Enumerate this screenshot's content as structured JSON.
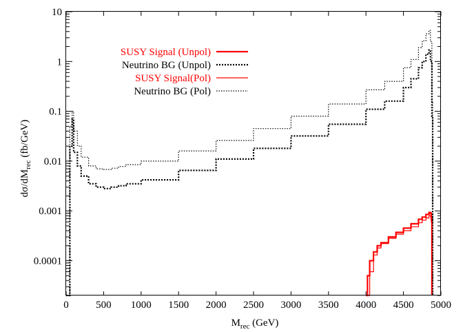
{
  "chart_data": {
    "type": "line",
    "xlabel": "M",
    "xlabel_sub": "rec",
    "xlabel_unit": " (GeV)",
    "ylabel": "dσ/dM",
    "ylabel_sub": "rec",
    "ylabel_unit": " (fb/GeV)",
    "xlim": [
      0,
      5000
    ],
    "ylim": [
      2e-05,
      10
    ],
    "yscale": "log",
    "grid": false,
    "legend_position": "top-left",
    "x_ticks": [
      0,
      500,
      1000,
      1500,
      2000,
      2500,
      3000,
      3500,
      4000,
      4500,
      5000
    ],
    "x_tick_labels": [
      "0",
      "500",
      "1000",
      "1500",
      "2000",
      "2500",
      "3000",
      "3500",
      "4000",
      "4500",
      "5000"
    ],
    "y_ticks": [
      0.0001,
      0.001,
      0.01,
      0.1,
      1,
      10
    ],
    "y_tick_labels": [
      "0.0001",
      "0.001",
      "0.01",
      "0.1",
      "1",
      "10"
    ],
    "series": [
      {
        "name": "SUSY Signal (Unpol)",
        "color": "#ff0000",
        "style": "solid",
        "width": 2.2,
        "x": [
          4000,
          4020,
          4050,
          4100,
          4150,
          4200,
          4300,
          4400,
          4500,
          4600,
          4700,
          4750,
          4800,
          4840,
          4860,
          4870,
          4880
        ],
        "y": [
          2e-05,
          5e-05,
          0.0001,
          0.00015,
          0.0002,
          0.00023,
          0.0003,
          0.00037,
          0.00045,
          0.00055,
          0.00068,
          0.00075,
          0.00085,
          0.00093,
          0.0009,
          0.0007,
          2e-05
        ]
      },
      {
        "name": "Neutrino BG (Unpol)",
        "color": "#000000",
        "style": "dotted",
        "width": 2.2,
        "x": [
          0,
          50,
          80,
          100,
          150,
          200,
          300,
          400,
          500,
          600,
          700,
          800,
          1000,
          1500,
          2000,
          2500,
          3000,
          3500,
          4000,
          4250,
          4500,
          4600,
          4700,
          4750,
          4800,
          4840,
          4860,
          4880,
          4890
        ],
        "y": [
          2e-05,
          0.02,
          0.07,
          0.015,
          0.008,
          0.005,
          0.0035,
          0.003,
          0.0028,
          0.003,
          0.0032,
          0.0035,
          0.0042,
          0.0065,
          0.011,
          0.018,
          0.032,
          0.055,
          0.11,
          0.16,
          0.3,
          0.45,
          0.75,
          1.0,
          1.4,
          1.7,
          1.0,
          0.08,
          2e-05
        ]
      },
      {
        "name": "SUSY Signal(Pol)",
        "color": "#ff0000",
        "style": "solid",
        "width": 1.2,
        "x": [
          4000,
          4050,
          4100,
          4150,
          4200,
          4300,
          4400,
          4500,
          4600,
          4700,
          4750,
          4800,
          4840,
          4860,
          4870,
          4880
        ],
        "y": [
          2e-05,
          6e-05,
          0.00013,
          0.00018,
          0.00022,
          0.00028,
          0.00034,
          0.0004,
          0.00048,
          0.00058,
          0.00065,
          0.00072,
          0.0008,
          0.00078,
          0.0006,
          2e-05
        ]
      },
      {
        "name": "Neutrino BG (Pol)",
        "color": "#000000",
        "style": "dotted",
        "width": 1.2,
        "x": [
          0,
          50,
          80,
          100,
          150,
          200,
          300,
          400,
          500,
          600,
          700,
          800,
          1000,
          1500,
          2000,
          2500,
          3000,
          3500,
          4000,
          4250,
          4500,
          4600,
          4700,
          4750,
          4800,
          4840,
          4860,
          4880,
          4890
        ],
        "y": [
          2e-05,
          0.05,
          0.1,
          0.04,
          0.02,
          0.012,
          0.008,
          0.007,
          0.0068,
          0.0072,
          0.0078,
          0.0085,
          0.01,
          0.016,
          0.026,
          0.045,
          0.08,
          0.14,
          0.27,
          0.4,
          0.75,
          1.1,
          1.9,
          2.6,
          3.6,
          4.2,
          2.5,
          0.15,
          2e-05
        ]
      }
    ]
  }
}
